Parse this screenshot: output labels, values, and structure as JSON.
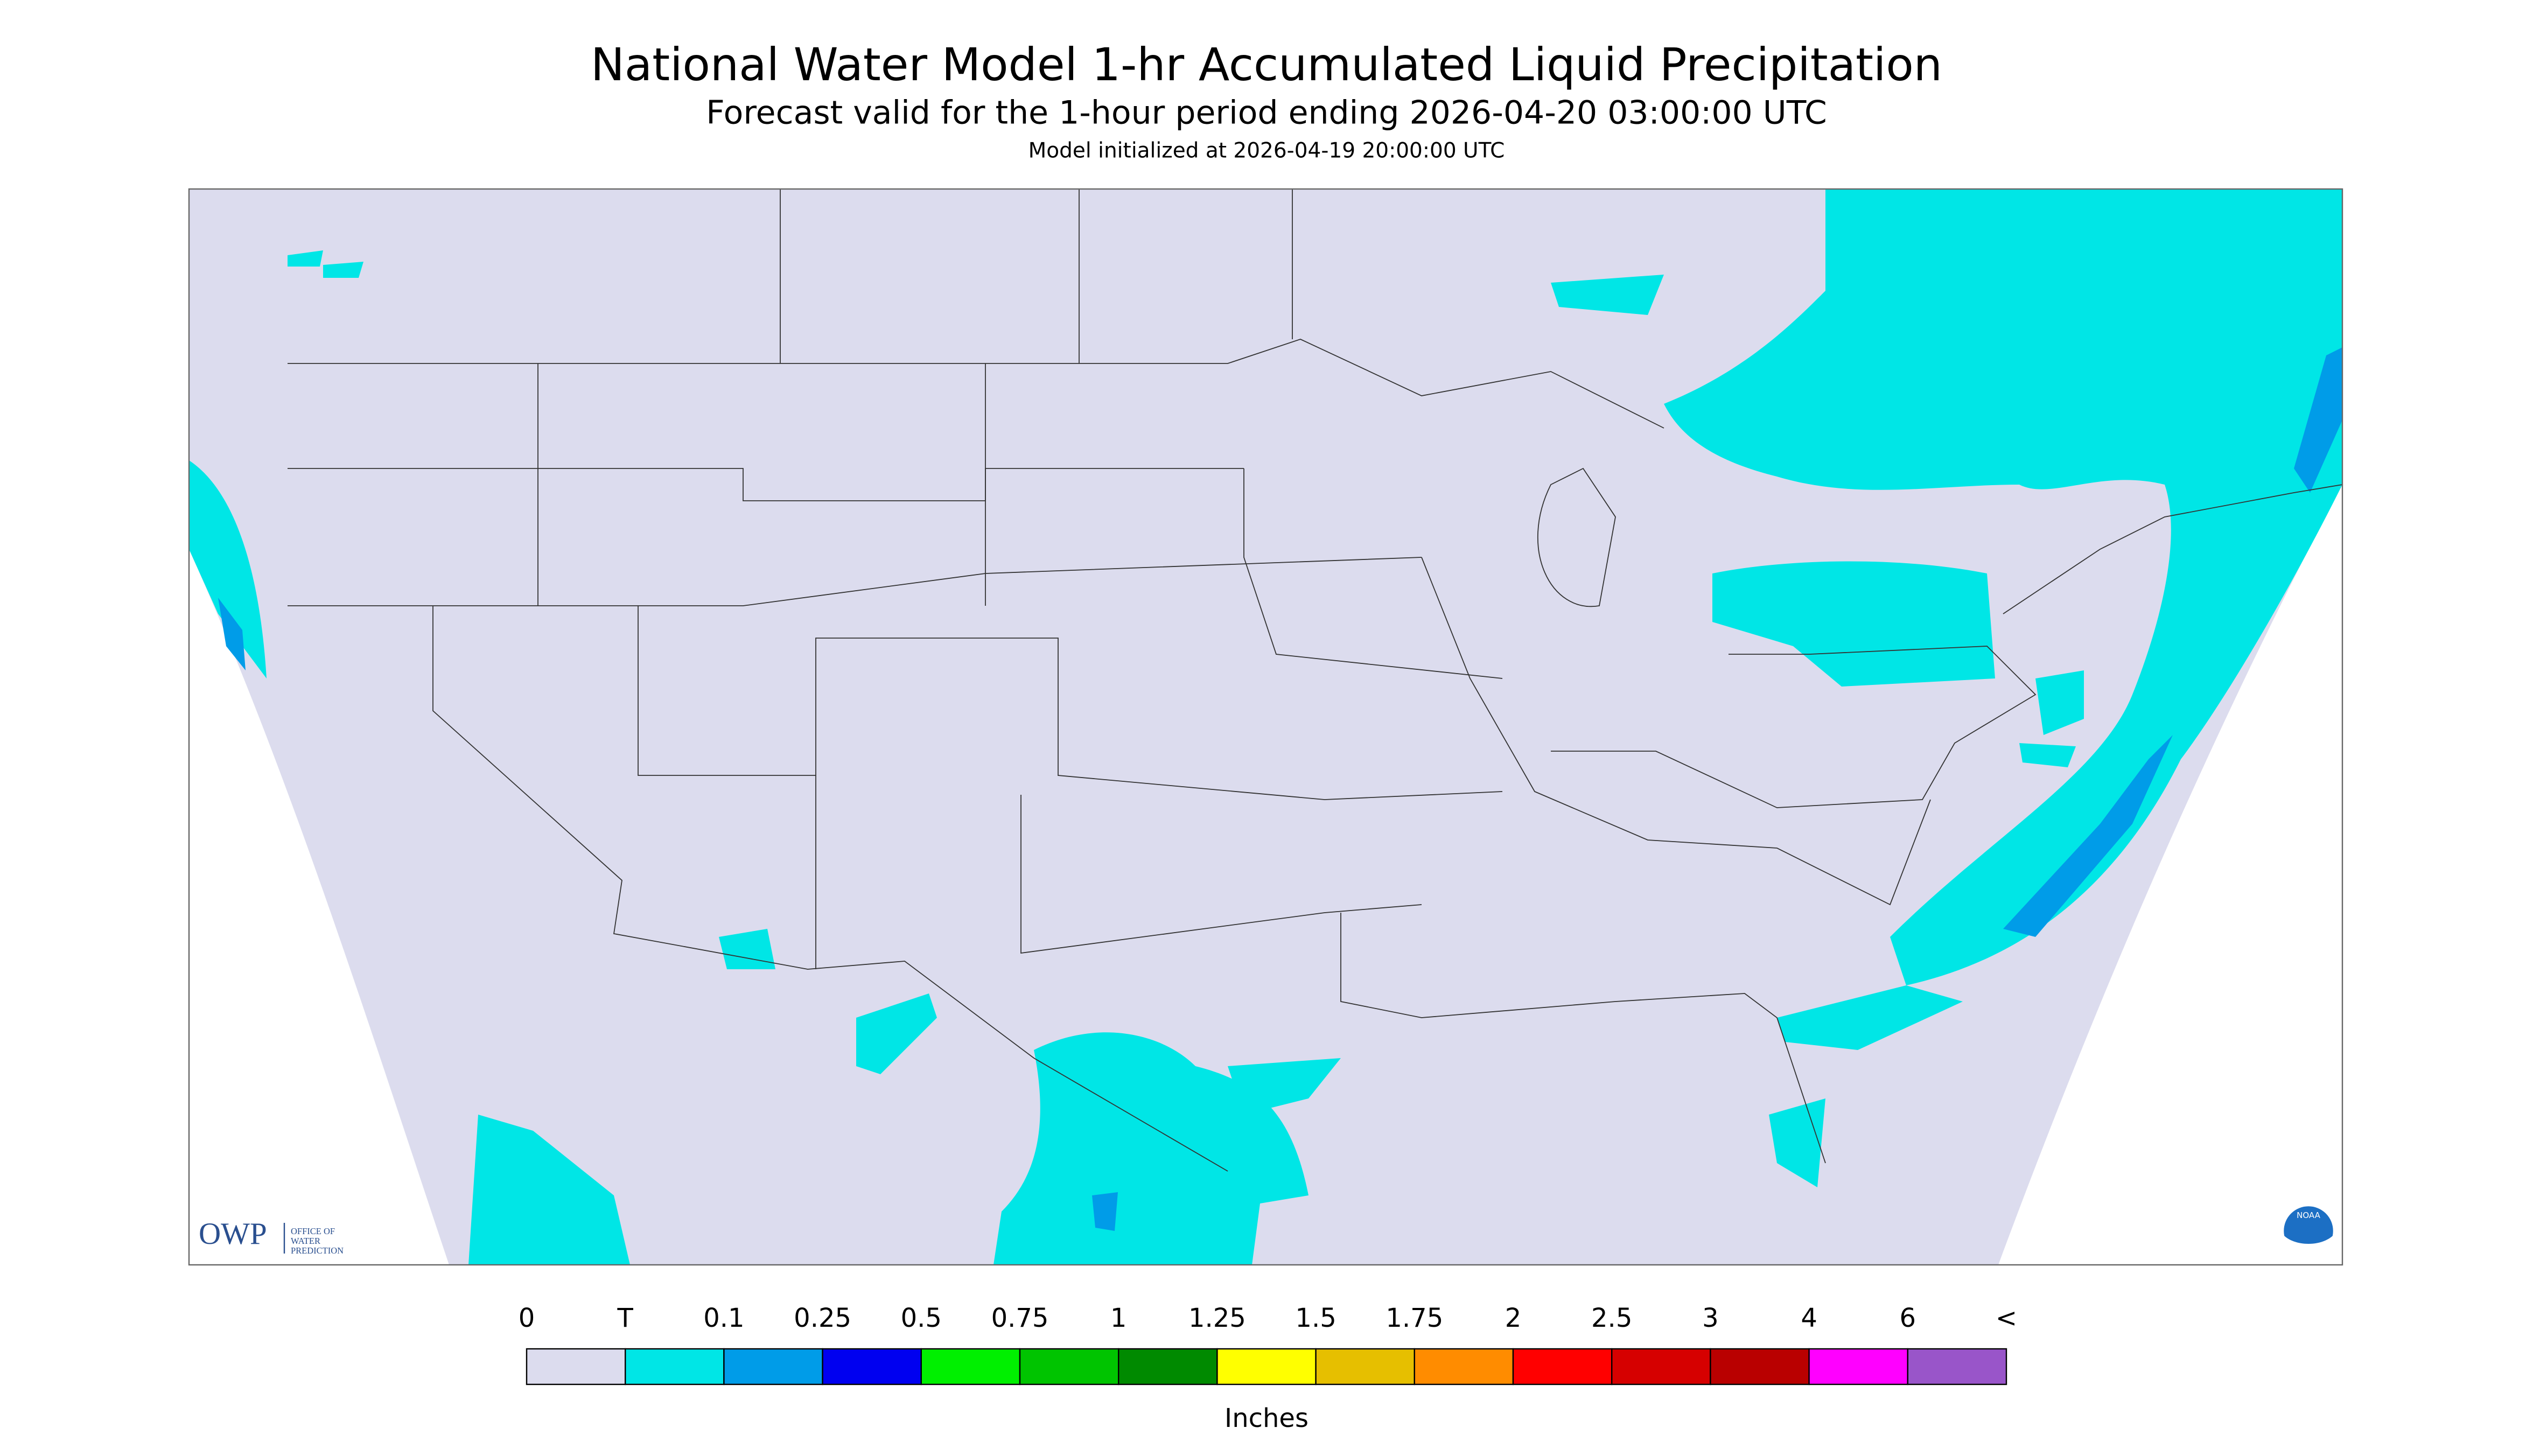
{
  "header": {
    "title": "National Water Model 1-hr Accumulated Liquid Precipitation",
    "subtitle": "Forecast valid for the 1-hour period ending 2026-04-20 03:00:00 UTC",
    "init_line": "Model initialized at 2026-04-19 20:00:00 UTC"
  },
  "logos": {
    "owp": "OWP",
    "owp_text": [
      "OFFICE OF",
      "WATER",
      "PREDICTION"
    ],
    "noaa": "NOAA"
  },
  "legend": {
    "labels": [
      "0",
      "T",
      "0.1",
      "0.25",
      "0.5",
      "0.75",
      "1",
      "1.25",
      "1.5",
      "1.75",
      "2",
      "2.5",
      "3",
      "4",
      "6",
      "<"
    ],
    "colors": [
      "#dcdcee",
      "#00e6e6",
      "#009ce8",
      "#0000f0",
      "#00f000",
      "#00c400",
      "#008a00",
      "#ffff00",
      "#e6bf00",
      "#ff8c00",
      "#ff0000",
      "#d60000",
      "#b90000",
      "#ff00ff",
      "#9955c9"
    ],
    "unit": "Inches"
  }
}
